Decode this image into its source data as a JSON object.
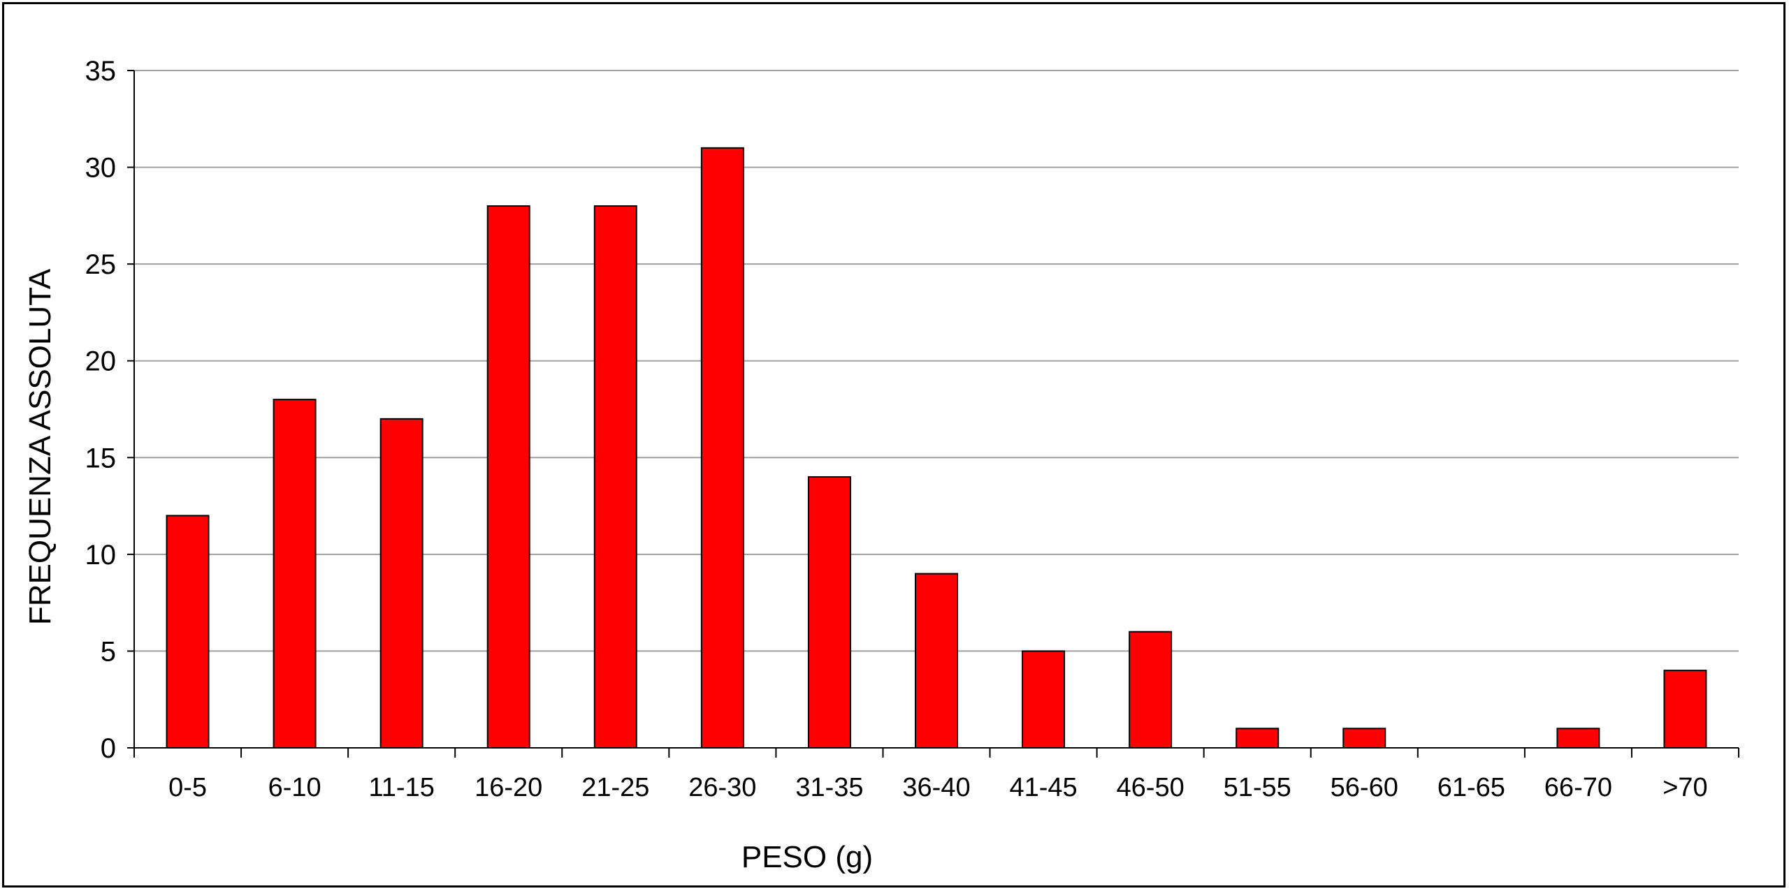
{
  "chart_data": {
    "type": "bar",
    "title": "",
    "xlabel": "PESO (g)",
    "ylabel": "FREQUENZA ASSOLUTA",
    "ylim": [
      0,
      35
    ],
    "yticks": [
      0,
      5,
      10,
      15,
      20,
      25,
      30,
      35
    ],
    "grid": true,
    "categories": [
      "0-5",
      "6-10",
      "11-15",
      "16-20",
      "21-25",
      "26-30",
      "31-35",
      "36-40",
      "41-45",
      "46-50",
      "51-55",
      "56-60",
      "61-65",
      "66-70",
      ">70"
    ],
    "values": [
      12,
      18,
      17,
      28,
      28,
      31,
      14,
      9,
      5,
      6,
      1,
      1,
      0,
      1,
      4
    ],
    "bar_color": "#ff0000",
    "bar_edge_color": "#000000",
    "grid_color": "#a0a0a0"
  }
}
